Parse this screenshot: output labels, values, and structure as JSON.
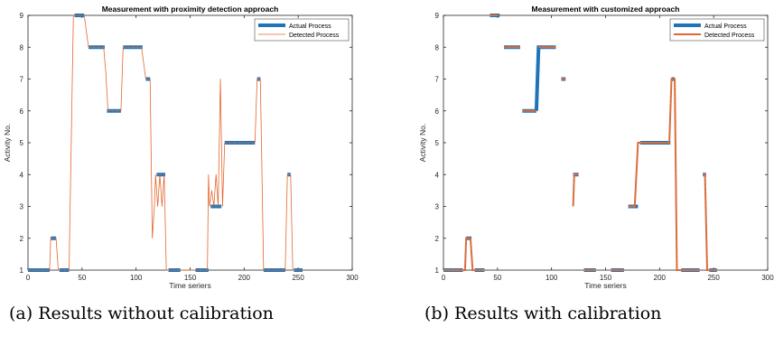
{
  "captions": [
    "(a) Results without calibration",
    "(b) Results with calibration"
  ],
  "colors": {
    "actual": "#1f73b7",
    "detected": "#e2672f",
    "grey_artifact": "#999999"
  },
  "chart_data": [
    {
      "type": "line",
      "title": "Measurement with proximity detection approach",
      "xlabel": "Time seriers",
      "ylabel": "Activity No.",
      "xlim": [
        0,
        300
      ],
      "ylim": [
        1,
        9
      ],
      "xticks": [
        0,
        50,
        100,
        150,
        200,
        250,
        300
      ],
      "yticks": [
        1,
        2,
        3,
        4,
        5,
        6,
        7,
        8,
        9
      ],
      "legend_position": "top-right",
      "series": [
        {
          "name": "Actual Process",
          "style": "thick",
          "segments": [
            [
              [
                0,
                1
              ],
              [
                20,
                1
              ]
            ],
            [
              [
                21,
                2
              ],
              [
                26,
                2
              ]
            ],
            [
              [
                29,
                1
              ],
              [
                38,
                1
              ]
            ],
            [
              [
                43,
                9
              ],
              [
                52,
                9
              ]
            ],
            [
              [
                56,
                8
              ],
              [
                71,
                8
              ]
            ],
            [
              [
                73,
                6
              ],
              [
                86,
                6
              ]
            ],
            [
              [
                88,
                8
              ],
              [
                106,
                8
              ]
            ],
            [
              [
                109,
                7
              ],
              [
                113,
                7
              ]
            ],
            [
              [
                119,
                4
              ],
              [
                127,
                4
              ]
            ],
            [
              [
                130,
                1
              ],
              [
                141,
                1
              ]
            ],
            [
              [
                155,
                1
              ],
              [
                167,
                1
              ]
            ],
            [
              [
                169,
                3
              ],
              [
                179,
                3
              ]
            ],
            [
              [
                182,
                5
              ],
              [
                210,
                5
              ]
            ],
            [
              [
                212,
                7
              ],
              [
                215,
                7
              ]
            ],
            [
              [
                218,
                1
              ],
              [
                238,
                1
              ]
            ],
            [
              [
                240,
                4
              ],
              [
                243,
                4
              ]
            ],
            [
              [
                246,
                1
              ],
              [
                254,
                1
              ]
            ]
          ]
        },
        {
          "name": "Detected Process",
          "style": "thin",
          "points": [
            [
              0,
              1
            ],
            [
              20,
              1
            ],
            [
              21,
              2
            ],
            [
              26,
              2
            ],
            [
              28,
              1
            ],
            [
              38,
              1
            ],
            [
              42,
              9
            ],
            [
              52,
              9
            ],
            [
              56,
              8
            ],
            [
              70,
              8
            ],
            [
              72,
              7.2
            ],
            [
              74,
              6
            ],
            [
              86,
              6
            ],
            [
              88,
              8
            ],
            [
              105,
              8
            ],
            [
              107,
              7.5
            ],
            [
              109,
              7
            ],
            [
              113,
              7
            ],
            [
              115,
              2
            ],
            [
              117,
              3
            ],
            [
              118,
              4
            ],
            [
              120,
              3
            ],
            [
              122,
              4
            ],
            [
              124,
              3
            ],
            [
              126,
              4
            ],
            [
              128,
              1
            ],
            [
              141,
              1
            ],
            [
              150,
              1
            ],
            [
              155,
              1
            ],
            [
              166,
              1
            ],
            [
              167,
              4
            ],
            [
              168,
              3
            ],
            [
              170,
              3.5
            ],
            [
              172,
              3
            ],
            [
              174,
              4
            ],
            [
              176,
              3
            ],
            [
              178,
              7
            ],
            [
              180,
              3
            ],
            [
              182,
              5
            ],
            [
              210,
              5
            ],
            [
              212,
              7
            ],
            [
              215,
              7
            ],
            [
              218,
              1
            ],
            [
              238,
              1
            ],
            [
              240,
              4
            ],
            [
              243,
              4
            ],
            [
              245,
              1
            ],
            [
              254,
              1
            ]
          ]
        }
      ]
    },
    {
      "type": "line",
      "title": "Measurement with customized approach",
      "xlabel": "Time seriers",
      "ylabel": "Activity No.",
      "xlim": [
        0,
        300
      ],
      "ylim": [
        1,
        9
      ],
      "xticks": [
        0,
        50,
        100,
        150,
        200,
        250,
        300
      ],
      "yticks": [
        1,
        2,
        3,
        4,
        5,
        6,
        7,
        8,
        9
      ],
      "legend_position": "top-right",
      "series": [
        {
          "name": "Actual Process",
          "style": "thick",
          "segments": [
            [
              [
                0,
                1
              ],
              [
                18,
                1
              ]
            ],
            [
              [
                21,
                2
              ],
              [
                26,
                2
              ]
            ],
            [
              [
                29,
                1
              ],
              [
                38,
                1
              ]
            ],
            [
              [
                43,
                9
              ],
              [
                52,
                9
              ]
            ],
            [
              [
                56,
                8
              ],
              [
                71,
                8
              ]
            ],
            [
              [
                73,
                6
              ],
              [
                86,
                6
              ]
            ],
            [
              [
                86,
                6
              ],
              [
                88,
                8
              ],
              [
                104,
                8
              ]
            ],
            [
              [
                109,
                7
              ],
              [
                113,
                7
              ]
            ],
            [
              [
                120,
                4
              ],
              [
                125,
                4
              ]
            ],
            [
              [
                130,
                1
              ],
              [
                141,
                1
              ]
            ],
            [
              [
                155,
                1
              ],
              [
                167,
                1
              ]
            ],
            [
              [
                171,
                3
              ],
              [
                180,
                3
              ]
            ],
            [
              [
                182,
                5
              ],
              [
                210,
                5
              ]
            ],
            [
              [
                211,
                7
              ],
              [
                214,
                7
              ]
            ],
            [
              [
                220,
                1
              ],
              [
                237,
                1
              ]
            ],
            [
              [
                240,
                4
              ],
              [
                243,
                4
              ]
            ],
            [
              [
                246,
                1
              ],
              [
                253,
                1
              ]
            ]
          ]
        },
        {
          "name": "Detected Process",
          "style": "medium",
          "segments": [
            [
              [
                0,
                1
              ],
              [
                18,
                1
              ],
              [
                20,
                1
              ],
              [
                21,
                2
              ],
              [
                25,
                2
              ],
              [
                27,
                1
              ],
              [
                38,
                1
              ]
            ],
            [
              [
                43,
                9
              ],
              [
                51,
                9
              ]
            ],
            [
              [
                56,
                8
              ],
              [
                71,
                8
              ]
            ],
            [
              [
                73,
                6
              ],
              [
                86,
                6
              ]
            ],
            [
              [
                88,
                8
              ],
              [
                104,
                8
              ]
            ],
            [
              [
                109,
                7
              ],
              [
                113,
                7
              ]
            ],
            [
              [
                120,
                3
              ],
              [
                121,
                4
              ],
              [
                125,
                4
              ]
            ],
            [
              [
                130,
                1
              ],
              [
                141,
                1
              ]
            ],
            [
              [
                155,
                1
              ],
              [
                167,
                1
              ]
            ],
            [
              [
                171,
                3
              ],
              [
                177,
                3
              ],
              [
                180,
                5
              ],
              [
                209,
                5
              ],
              [
                211,
                7
              ],
              [
                214,
                7
              ],
              [
                216,
                1
              ],
              [
                237,
                1
              ]
            ],
            [
              [
                240,
                4
              ],
              [
                242,
                4
              ],
              [
                244,
                1
              ],
              [
                253,
                1
              ]
            ]
          ]
        }
      ]
    }
  ]
}
